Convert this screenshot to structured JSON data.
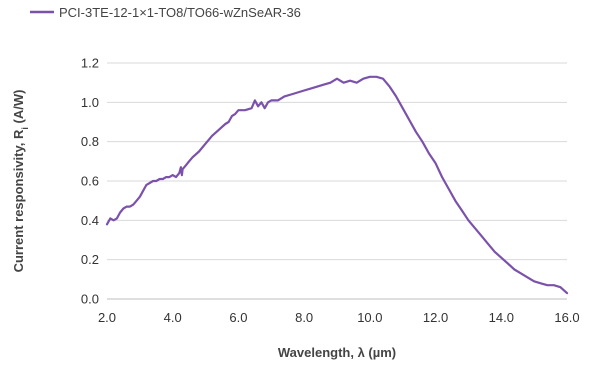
{
  "chart_data": {
    "type": "line",
    "xlabel": "Wavelength, λ (µm)",
    "ylabel_main": "Current responsivity, R",
    "ylabel_sub": "i",
    "ylabel_unit": " (A/W)",
    "xlim": [
      2.0,
      16.0
    ],
    "ylim": [
      0.0,
      1.2
    ],
    "xticks": [
      "2.0",
      "4.0",
      "6.0",
      "8.0",
      "10.0",
      "12.0",
      "14.0",
      "16.0"
    ],
    "yticks": [
      "0.0",
      "0.2",
      "0.4",
      "0.6",
      "0.8",
      "1.0",
      "1.2"
    ],
    "grid": true,
    "legend_position": "top-left",
    "series": [
      {
        "name": "PCI-3TE-12-1×1-TO8/TO66-wZnSeAR-36",
        "color": "#7b52ab",
        "x": [
          2.0,
          2.1,
          2.2,
          2.3,
          2.4,
          2.5,
          2.6,
          2.7,
          2.8,
          2.9,
          3.0,
          3.1,
          3.2,
          3.3,
          3.4,
          3.5,
          3.6,
          3.7,
          3.8,
          3.9,
          4.0,
          4.1,
          4.2,
          4.25,
          4.28,
          4.3,
          4.4,
          4.5,
          4.6,
          4.8,
          5.0,
          5.2,
          5.4,
          5.6,
          5.7,
          5.8,
          5.9,
          6.0,
          6.2,
          6.4,
          6.5,
          6.6,
          6.7,
          6.8,
          6.9,
          7.0,
          7.2,
          7.4,
          7.6,
          7.8,
          8.0,
          8.2,
          8.4,
          8.6,
          8.8,
          9.0,
          9.2,
          9.4,
          9.6,
          9.8,
          10.0,
          10.2,
          10.4,
          10.6,
          10.8,
          11.0,
          11.2,
          11.4,
          11.6,
          11.8,
          12.0,
          12.2,
          12.4,
          12.6,
          12.8,
          13.0,
          13.2,
          13.4,
          13.6,
          13.8,
          14.0,
          14.2,
          14.4,
          14.6,
          14.8,
          15.0,
          15.2,
          15.4,
          15.6,
          15.8,
          16.0
        ],
        "values": [
          0.38,
          0.41,
          0.4,
          0.41,
          0.44,
          0.46,
          0.47,
          0.47,
          0.48,
          0.5,
          0.52,
          0.55,
          0.58,
          0.59,
          0.6,
          0.6,
          0.61,
          0.61,
          0.62,
          0.62,
          0.63,
          0.62,
          0.64,
          0.67,
          0.63,
          0.66,
          0.68,
          0.7,
          0.72,
          0.75,
          0.79,
          0.83,
          0.86,
          0.89,
          0.9,
          0.93,
          0.94,
          0.96,
          0.96,
          0.97,
          1.01,
          0.98,
          1.0,
          0.97,
          1.0,
          1.01,
          1.01,
          1.03,
          1.04,
          1.05,
          1.06,
          1.07,
          1.08,
          1.09,
          1.1,
          1.12,
          1.1,
          1.11,
          1.1,
          1.12,
          1.13,
          1.13,
          1.12,
          1.08,
          1.03,
          0.97,
          0.91,
          0.85,
          0.8,
          0.74,
          0.69,
          0.62,
          0.56,
          0.5,
          0.45,
          0.4,
          0.36,
          0.32,
          0.28,
          0.24,
          0.21,
          0.18,
          0.15,
          0.13,
          0.11,
          0.09,
          0.08,
          0.07,
          0.07,
          0.06,
          0.03
        ]
      }
    ]
  }
}
